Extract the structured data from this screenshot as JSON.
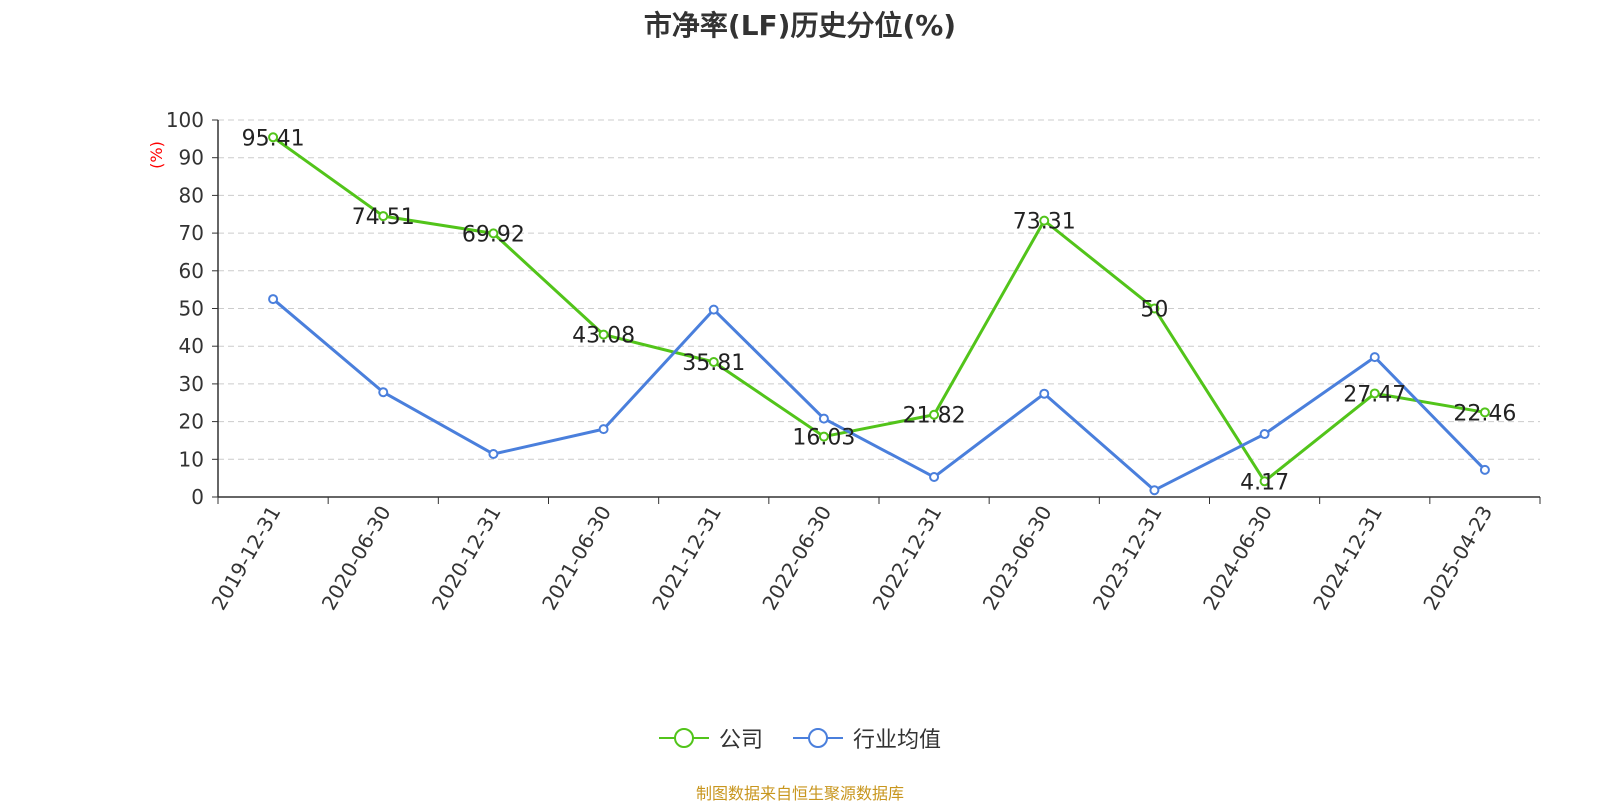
{
  "chart_data": {
    "type": "line",
    "title": "市净率(LF)历史分位(%)",
    "ylabel": "(%)",
    "xlabel": "",
    "categories": [
      "2019-12-31",
      "2020-06-30",
      "2020-12-31",
      "2021-06-30",
      "2021-12-31",
      "2022-06-30",
      "2022-12-31",
      "2023-06-30",
      "2023-12-31",
      "2024-06-30",
      "2024-12-31",
      "2025-04-23"
    ],
    "ylim": [
      0,
      100
    ],
    "yticks": [
      0,
      10,
      20,
      30,
      40,
      50,
      60,
      70,
      80,
      90,
      100
    ],
    "grid": "horizontal-dashed",
    "legend_position": "bottom",
    "series": [
      {
        "name": "公司",
        "color": "#52c41a",
        "show_labels": true,
        "values": [
          95.41,
          74.51,
          69.92,
          43.08,
          35.81,
          16.03,
          21.82,
          73.31,
          50,
          4.17,
          27.47,
          22.46
        ]
      },
      {
        "name": "行业均值",
        "color": "#4a7fdc",
        "show_labels": false,
        "values": [
          52.5,
          27.8,
          11.4,
          18.0,
          49.7,
          20.8,
          5.3,
          27.4,
          1.8,
          16.7,
          37.1,
          7.2
        ]
      }
    ]
  },
  "footer": "制图数据来自恒生聚源数据库"
}
